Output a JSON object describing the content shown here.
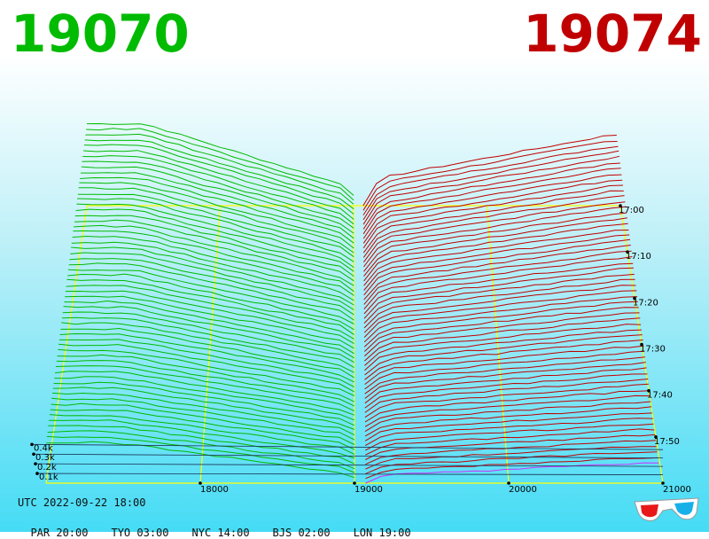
{
  "header": {
    "bid": "19070",
    "ask": "19074"
  },
  "colors": {
    "bid": "#00bb00",
    "ask": "#c00000",
    "grid": "#ffff00",
    "current_profile": "#cc33ff",
    "baseline": "#1a3355"
  },
  "footer": {
    "utc": "UTC 2022-09-22 18:00",
    "clocks": [
      "PAR 20:00",
      "TYO 03:00",
      "NYC 14:00",
      "BJS 02:00",
      "LON 19:00"
    ]
  },
  "icons": {
    "anaglyph": "3d-glasses-icon"
  },
  "chart_data": {
    "type": "3d-depth-chart",
    "title": "",
    "x_ticks": [
      "18000",
      "19000",
      "20000",
      "21000"
    ],
    "y_ticks": [
      "0.1k",
      "0.2k",
      "0.3k",
      "0.4k"
    ],
    "t_ticks": [
      "17:00",
      "17:10",
      "17:20",
      "17:30",
      "17:40",
      "17:50"
    ],
    "xlim": [
      17000,
      21000
    ],
    "ylim_k": [
      0,
      0.5
    ],
    "bid_price": 19070,
    "ask_price": 19074,
    "snapshot_count": 60
  }
}
